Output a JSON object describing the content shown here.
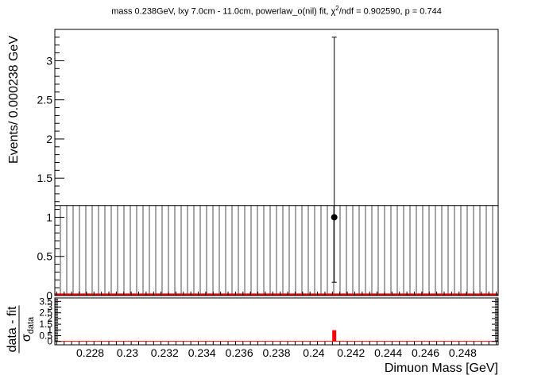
{
  "page": {
    "title_pre": "mass 0.238GeV, lxy 7.0cm - 11.0cm, powerlaw_o(nil) fit, χ",
    "title_sup": "2",
    "title_post": "/ndf = 0.902590, p = 0.744"
  },
  "chart_data": [
    {
      "type": "scatter",
      "panel": "main",
      "xlabel": "",
      "ylabel": "Events/ 0.000238 GeV",
      "xlim": [
        0.2261,
        0.2499
      ],
      "ylim": [
        0,
        3.4
      ],
      "y_ticks": [
        0,
        0.5,
        1,
        1.5,
        2,
        2.5,
        3
      ],
      "y_tick_labels": [
        "0",
        "0.5",
        "1",
        "1.5",
        "2",
        "2.5",
        "3"
      ],
      "data_points": [
        {
          "x": 0.2411,
          "y": 1,
          "err_low": 0.83,
          "err_high": 2.3
        }
      ],
      "fit_curve": {
        "x": [
          0.2261,
          0.2499
        ],
        "y": [
          0.012,
          0.012
        ],
        "color": "#ff0000"
      },
      "uncertainty_band": {
        "y_low": 0,
        "y_high": 1.15,
        "style": "vertical-hatch"
      },
      "grid": false
    },
    {
      "type": "bar",
      "panel": "pull",
      "ylabel_num": "data - fit",
      "ylabel_den": "σ",
      "ylabel_den_sub": "data",
      "xlabel": "Dimuon Mass [GeV]",
      "xlim": [
        0.2261,
        0.2499
      ],
      "ylim": [
        -0.3,
        3.8
      ],
      "y_ticks": [
        0,
        0.5,
        1,
        1.5,
        2,
        2.5,
        3,
        3.5
      ],
      "y_tick_labels": [
        "0",
        "0.5",
        "1",
        "1.5",
        "2",
        "2.5",
        "3",
        "3.5"
      ],
      "x_ticks": [
        0.228,
        0.23,
        0.232,
        0.234,
        0.236,
        0.238,
        0.24,
        0.242,
        0.244,
        0.246,
        0.248
      ],
      "x_tick_labels": [
        "0.228",
        "0.23",
        "0.232",
        "0.234",
        "0.236",
        "0.238",
        "0.24",
        "0.242",
        "0.244",
        "0.246",
        "0.248"
      ],
      "bars": [
        {
          "x": 0.2411,
          "value": 0.98
        }
      ],
      "bar_color": "#ff0000"
    }
  ]
}
